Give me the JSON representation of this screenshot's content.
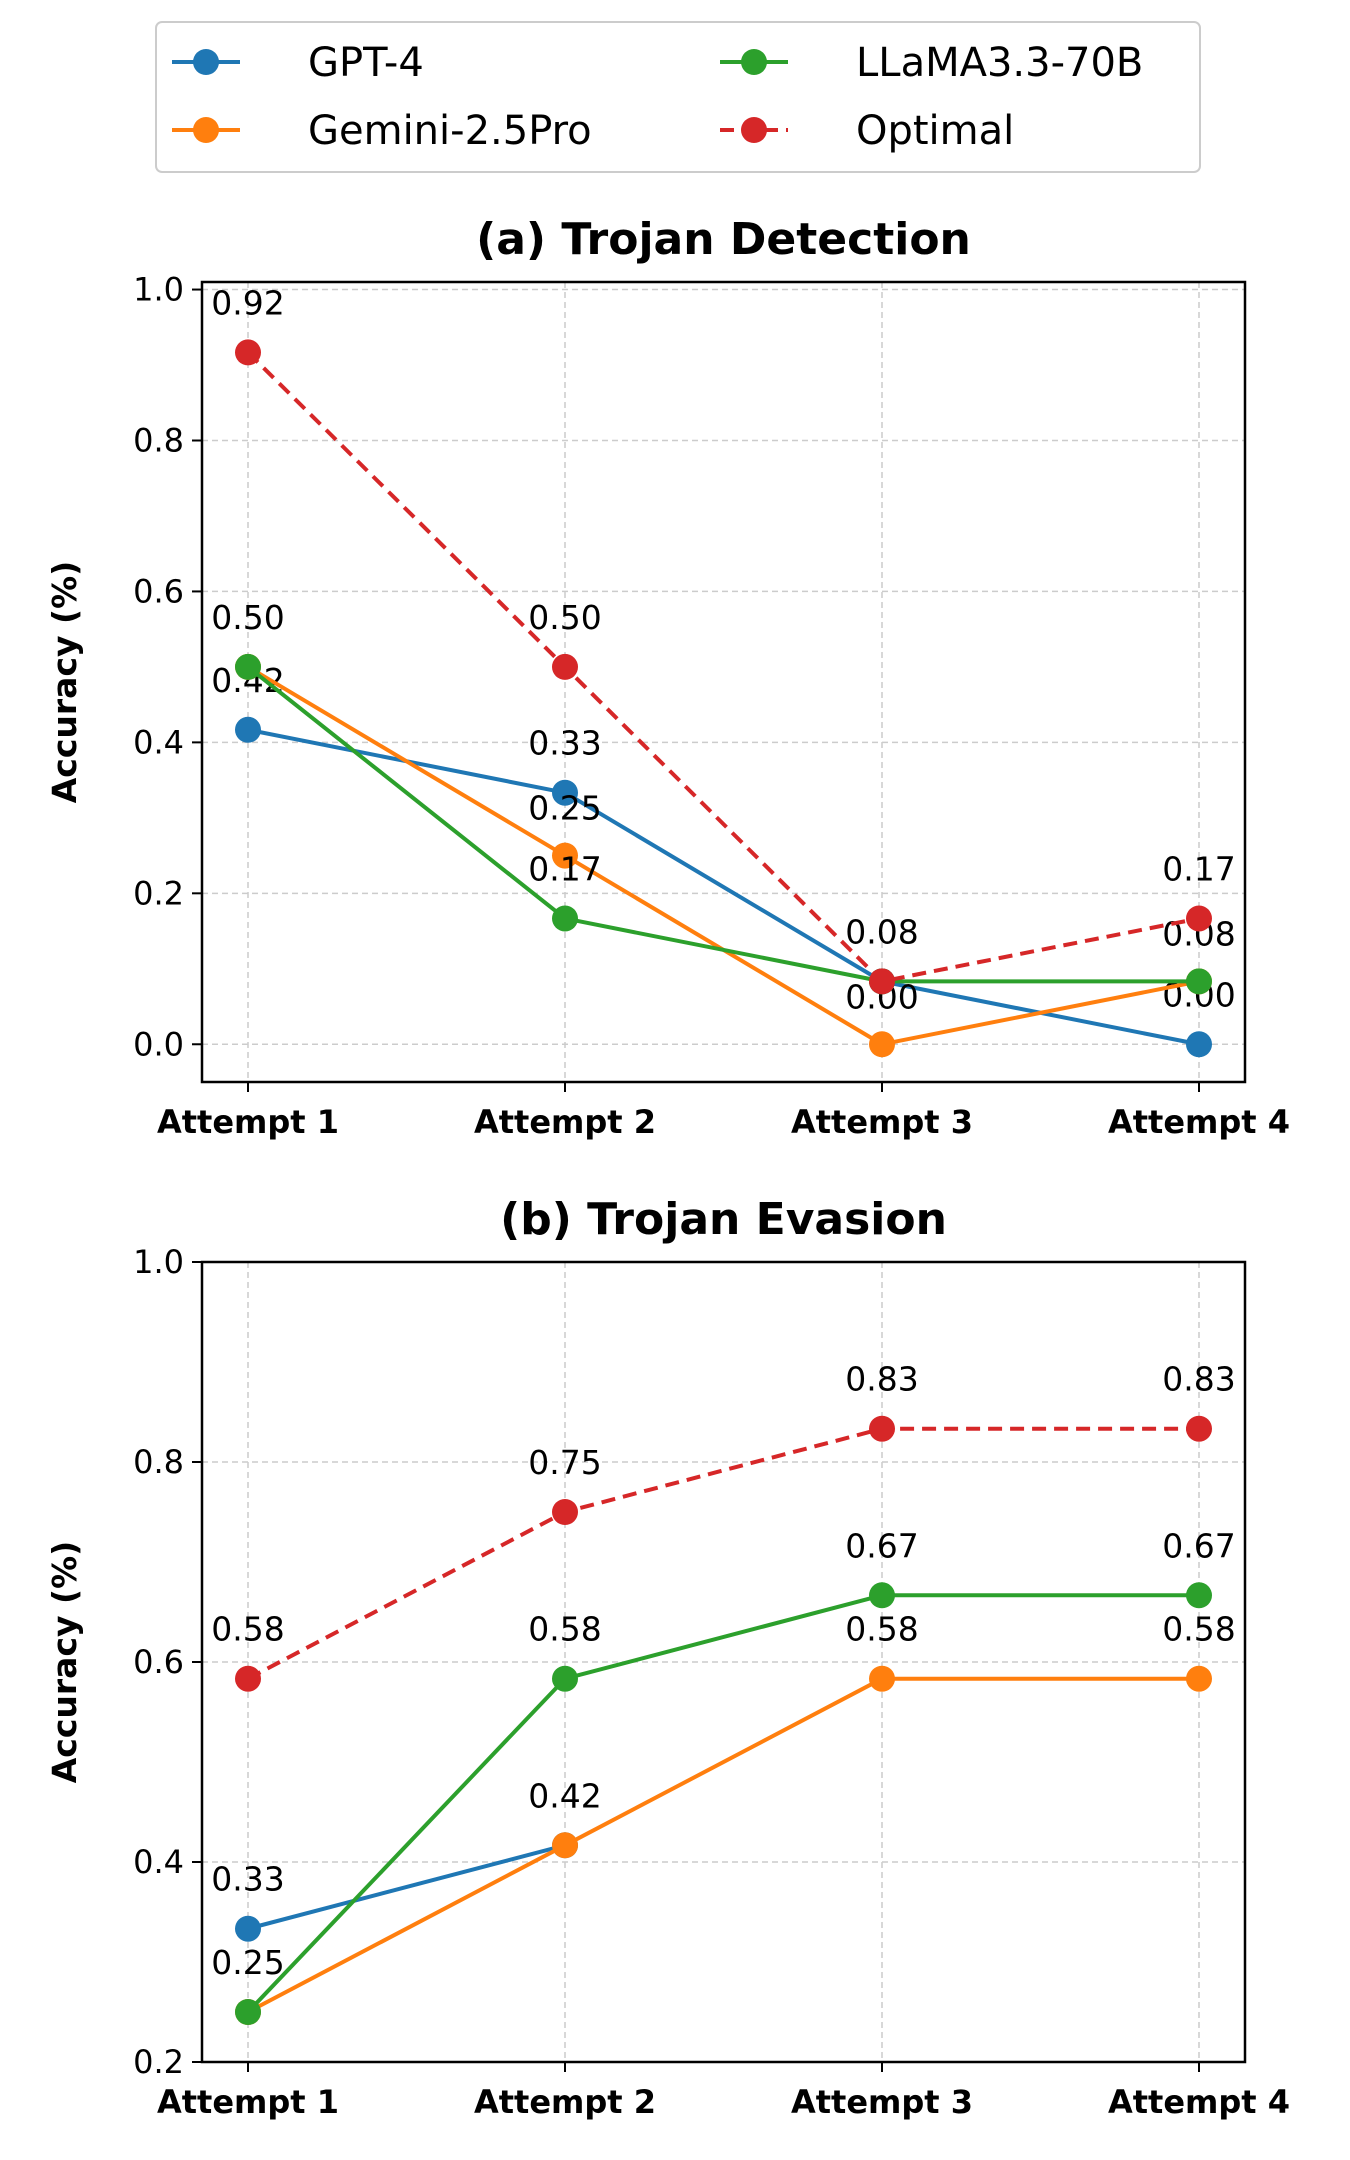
{
  "chart_data": {
    "legend": {
      "placement": "top-center",
      "columns": 2,
      "entries": [
        {
          "name": "GPT-4",
          "color": "#1f77b4",
          "style": "solid"
        },
        {
          "name": "Gemini-2.5Pro",
          "color": "#ff7f0e",
          "style": "solid"
        },
        {
          "name": "LLaMA3.3-70B",
          "color": "#2ca02c",
          "style": "solid"
        },
        {
          "name": "Optimal",
          "color": "#d62728",
          "style": "dashed"
        }
      ]
    },
    "charts": [
      {
        "type": "line",
        "title": "(a) Trojan Detection",
        "ylabel": "Accuracy (%)",
        "xlabel": "",
        "categories": [
          "Attempt 1",
          "Attempt 2",
          "Attempt 3",
          "Attempt 4"
        ],
        "ylim": [
          -0.05,
          1.01
        ],
        "yticks": [
          0.0,
          0.2,
          0.4,
          0.6,
          0.8,
          1.0
        ],
        "ytick_labels": [
          "0.0",
          "0.2",
          "0.4",
          "0.6",
          "0.8",
          "1.0"
        ],
        "grid": true,
        "series": [
          {
            "name": "GPT-4",
            "color": "#1f77b4",
            "style": "solid",
            "values": [
              0.4167,
              0.3333,
              0.0833,
              0.0
            ],
            "labels": [
              "0.42",
              "0.33",
              "0.08",
              "0.00"
            ]
          },
          {
            "name": "Gemini-2.5Pro",
            "color": "#ff7f0e",
            "style": "solid",
            "values": [
              0.5,
              0.25,
              0.0,
              0.0833
            ],
            "labels": [
              "",
              "0.25",
              "0.00",
              "0.08"
            ]
          },
          {
            "name": "LLaMA3.3-70B",
            "color": "#2ca02c",
            "style": "solid",
            "values": [
              0.5,
              0.1667,
              0.0833,
              0.0833
            ],
            "labels": [
              "0.50",
              "0.17",
              "",
              ""
            ]
          },
          {
            "name": "Optimal",
            "color": "#d62728",
            "style": "dashed",
            "values": [
              0.9167,
              0.5,
              0.0833,
              0.1667
            ],
            "labels": [
              "0.92",
              "0.50",
              "",
              "0.17"
            ]
          }
        ]
      },
      {
        "type": "line",
        "title": "(b) Trojan Evasion",
        "ylabel": "Accuracy (%)",
        "xlabel": "",
        "categories": [
          "Attempt 1",
          "Attempt 2",
          "Attempt 3",
          "Attempt 4"
        ],
        "ylim": [
          0.2,
          1.0
        ],
        "yticks": [
          0.2,
          0.4,
          0.6,
          0.8,
          1.0
        ],
        "ytick_labels": [
          "0.2",
          "0.4",
          "0.6",
          "0.8",
          "1.0"
        ],
        "grid": true,
        "series": [
          {
            "name": "GPT-4",
            "color": "#1f77b4",
            "style": "solid",
            "values": [
              0.3333,
              0.4167,
              null,
              null
            ],
            "labels": [
              "0.33",
              "",
              "",
              ""
            ]
          },
          {
            "name": "Gemini-2.5Pro",
            "color": "#ff7f0e",
            "style": "solid",
            "values": [
              0.25,
              0.4167,
              0.5833,
              0.5833
            ],
            "labels": [
              "0.25",
              "0.42",
              "0.58",
              "0.58"
            ]
          },
          {
            "name": "LLaMA3.3-70B",
            "color": "#2ca02c",
            "style": "solid",
            "values": [
              0.25,
              0.5833,
              0.6667,
              0.6667
            ],
            "labels": [
              "",
              "0.58",
              "0.67",
              "0.67"
            ]
          },
          {
            "name": "Optimal",
            "color": "#d62728",
            "style": "dashed",
            "values": [
              0.5833,
              0.75,
              0.8333,
              0.8333
            ],
            "labels": [
              "0.58",
              "0.75",
              "0.83",
              "0.83"
            ]
          }
        ]
      }
    ]
  }
}
